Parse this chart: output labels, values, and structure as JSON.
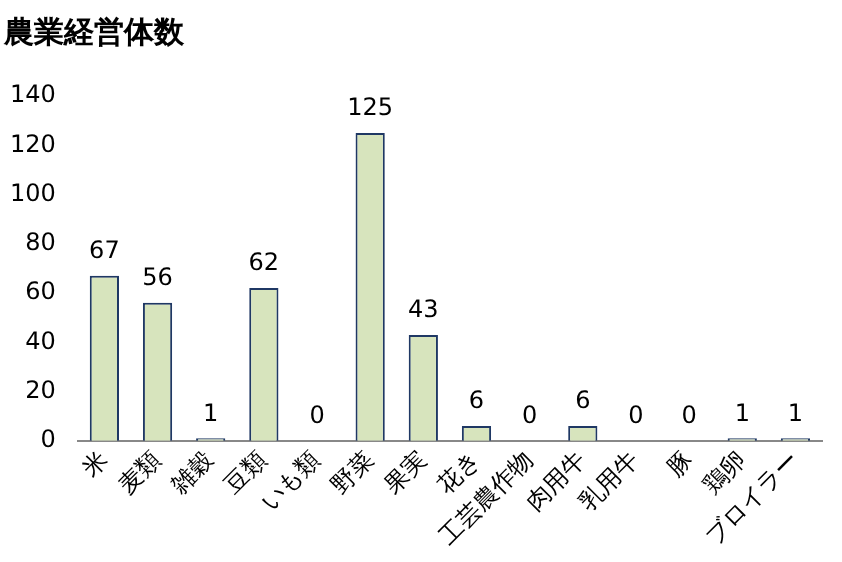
{
  "chart_data": {
    "type": "bar",
    "title": "農業経営体数",
    "categories": [
      "米",
      "麦類",
      "雑穀",
      "豆類",
      "いも類",
      "野菜",
      "果実",
      "花き",
      "工芸農作物",
      "肉用牛",
      "乳用牛",
      "豚",
      "鶏卵",
      "ブロイラー"
    ],
    "values": [
      67,
      56,
      1,
      62,
      0,
      125,
      43,
      6,
      0,
      6,
      0,
      0,
      1,
      1
    ],
    "color": "#d7e4bd",
    "ylim": [
      0,
      140
    ],
    "yticks": [
      0,
      20,
      40,
      60,
      80,
      100,
      120,
      140
    ],
    "grid": false,
    "legend": false,
    "data_labels": true
  }
}
